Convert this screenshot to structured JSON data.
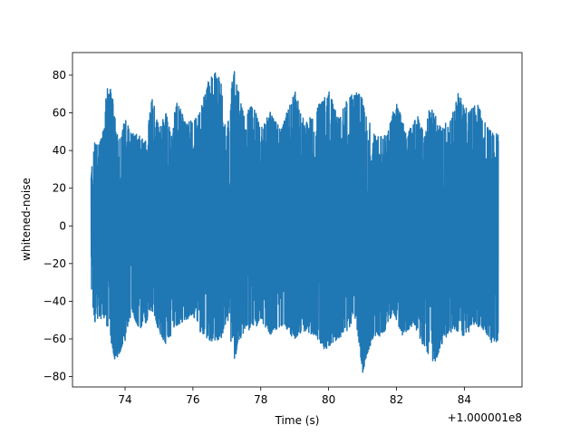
{
  "chart_data": {
    "type": "line",
    "title": "",
    "xlabel": "Time (s)",
    "ylabel": "whitened-noise",
    "x_offset_label": "+1.000001e8",
    "xlim": [
      72.45,
      85.7
    ],
    "ylim": [
      -85.5,
      92
    ],
    "x_ticks": [
      74,
      76,
      78,
      80,
      82,
      84
    ],
    "y_ticks": [
      -80,
      -60,
      -40,
      -20,
      0,
      20,
      40,
      60,
      80
    ],
    "grid": false,
    "line_color": "#1f77b4",
    "series": [
      {
        "x_start": 73.0,
        "x_end": 85.0,
        "envelope_upper": [
          [
            73.0,
            34
          ],
          [
            73.1,
            46
          ],
          [
            73.2,
            42
          ],
          [
            73.4,
            55
          ],
          [
            73.45,
            74
          ],
          [
            73.6,
            73
          ],
          [
            73.8,
            45
          ],
          [
            74.0,
            57
          ],
          [
            74.2,
            50
          ],
          [
            74.4,
            48
          ],
          [
            74.6,
            46
          ],
          [
            74.8,
            69
          ],
          [
            75.0,
            52
          ],
          [
            75.2,
            60
          ],
          [
            75.4,
            48
          ],
          [
            75.5,
            69
          ],
          [
            75.8,
            55
          ],
          [
            76.0,
            58
          ],
          [
            76.2,
            60
          ],
          [
            76.5,
            81
          ],
          [
            76.8,
            82
          ],
          [
            77.0,
            50
          ],
          [
            77.2,
            85
          ],
          [
            77.5,
            60
          ],
          [
            77.8,
            65
          ],
          [
            78.0,
            52
          ],
          [
            78.3,
            61
          ],
          [
            78.6,
            52
          ],
          [
            79.0,
            72
          ],
          [
            79.3,
            55
          ],
          [
            79.6,
            61
          ],
          [
            79.9,
            71
          ],
          [
            80.0,
            72
          ],
          [
            80.3,
            58
          ],
          [
            80.6,
            69
          ],
          [
            80.9,
            72
          ],
          [
            81.2,
            56
          ],
          [
            81.4,
            48
          ],
          [
            81.7,
            48
          ],
          [
            82.0,
            67
          ],
          [
            82.3,
            48
          ],
          [
            82.6,
            60
          ],
          [
            82.8,
            50
          ],
          [
            83.0,
            64
          ],
          [
            83.3,
            53
          ],
          [
            83.6,
            56
          ],
          [
            83.8,
            71
          ],
          [
            84.1,
            62
          ],
          [
            84.4,
            65
          ],
          [
            84.6,
            55
          ],
          [
            84.8,
            50
          ],
          [
            85.0,
            50
          ]
        ],
        "envelope_lower": [
          [
            73.0,
            -34
          ],
          [
            73.1,
            -51
          ],
          [
            73.2,
            -50
          ],
          [
            73.4,
            -49
          ],
          [
            73.6,
            -63
          ],
          [
            73.7,
            -72
          ],
          [
            74.0,
            -62
          ],
          [
            74.2,
            -45
          ],
          [
            74.4,
            -55
          ],
          [
            74.6,
            -52
          ],
          [
            74.8,
            -46
          ],
          [
            75.0,
            -56
          ],
          [
            75.2,
            -63
          ],
          [
            75.5,
            -53
          ],
          [
            75.8,
            -50
          ],
          [
            76.0,
            -47
          ],
          [
            76.2,
            -56
          ],
          [
            76.5,
            -61
          ],
          [
            76.8,
            -62
          ],
          [
            77.0,
            -50
          ],
          [
            77.2,
            -72
          ],
          [
            77.5,
            -56
          ],
          [
            77.8,
            -55
          ],
          [
            78.0,
            -50
          ],
          [
            78.3,
            -58
          ],
          [
            78.6,
            -53
          ],
          [
            79.0,
            -60
          ],
          [
            79.3,
            -56
          ],
          [
            79.6,
            -58
          ],
          [
            79.9,
            -66
          ],
          [
            80.2,
            -61
          ],
          [
            80.5,
            -57
          ],
          [
            80.8,
            -49
          ],
          [
            81.0,
            -78
          ],
          [
            81.3,
            -60
          ],
          [
            81.6,
            -58
          ],
          [
            81.9,
            -46
          ],
          [
            82.2,
            -59
          ],
          [
            82.5,
            -52
          ],
          [
            82.8,
            -64
          ],
          [
            83.1,
            -74
          ],
          [
            83.4,
            -60
          ],
          [
            83.7,
            -55
          ],
          [
            84.0,
            -60
          ],
          [
            84.3,
            -52
          ],
          [
            84.6,
            -56
          ],
          [
            84.8,
            -62
          ],
          [
            85.0,
            -62
          ]
        ]
      }
    ]
  }
}
